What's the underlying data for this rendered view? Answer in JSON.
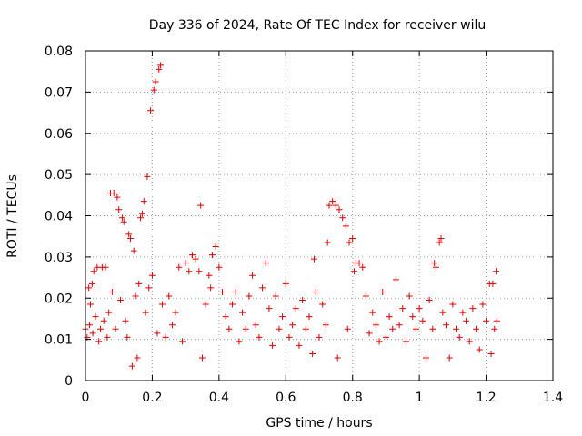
{
  "chart_data": {
    "type": "scatter",
    "title": "Day 336 of 2024, Rate Of TEC Index for receiver wilu",
    "xlabel": "GPS time / hours",
    "ylabel": "ROTI / TECUs",
    "xlim": [
      0,
      1.4
    ],
    "ylim": [
      0,
      0.08
    ],
    "xticks": [
      0,
      0.2,
      0.4,
      0.6,
      0.8,
      1.0,
      1.2,
      1.4
    ],
    "xtick_labels": [
      "0",
      "0.2",
      "0.4",
      "0.6",
      "0.8",
      "1",
      "1.2",
      "1.4"
    ],
    "yticks": [
      0,
      0.01,
      0.02,
      0.03,
      0.04,
      0.05,
      0.06,
      0.07,
      0.08
    ],
    "ytick_labels": [
      "0",
      "0.01",
      "0.02",
      "0.03",
      "0.04",
      "0.05",
      "0.06",
      "0.07",
      "0.08"
    ],
    "grid": true,
    "marker": "+",
    "marker_color": "#e00000",
    "series": [
      {
        "name": "ROTI",
        "points": [
          [
            0.0,
            0.0125
          ],
          [
            0.005,
            0.0105
          ],
          [
            0.01,
            0.0225
          ],
          [
            0.012,
            0.0135
          ],
          [
            0.015,
            0.0185
          ],
          [
            0.02,
            0.0235
          ],
          [
            0.022,
            0.0115
          ],
          [
            0.025,
            0.0265
          ],
          [
            0.03,
            0.0155
          ],
          [
            0.035,
            0.0275
          ],
          [
            0.04,
            0.0095
          ],
          [
            0.045,
            0.0125
          ],
          [
            0.05,
            0.0275
          ],
          [
            0.055,
            0.0145
          ],
          [
            0.06,
            0.0275
          ],
          [
            0.065,
            0.0105
          ],
          [
            0.07,
            0.0165
          ],
          [
            0.075,
            0.0455
          ],
          [
            0.08,
            0.0215
          ],
          [
            0.085,
            0.0455
          ],
          [
            0.09,
            0.0125
          ],
          [
            0.095,
            0.0445
          ],
          [
            0.1,
            0.0415
          ],
          [
            0.105,
            0.0195
          ],
          [
            0.11,
            0.0395
          ],
          [
            0.115,
            0.0385
          ],
          [
            0.12,
            0.0145
          ],
          [
            0.125,
            0.0105
          ],
          [
            0.13,
            0.0355
          ],
          [
            0.135,
            0.0345
          ],
          [
            0.14,
            0.0035
          ],
          [
            0.145,
            0.0315
          ],
          [
            0.15,
            0.0205
          ],
          [
            0.155,
            0.0055
          ],
          [
            0.16,
            0.0235
          ],
          [
            0.165,
            0.0395
          ],
          [
            0.17,
            0.0405
          ],
          [
            0.175,
            0.0435
          ],
          [
            0.18,
            0.0165
          ],
          [
            0.185,
            0.0495
          ],
          [
            0.19,
            0.0225
          ],
          [
            0.195,
            0.0655
          ],
          [
            0.2,
            0.0255
          ],
          [
            0.205,
            0.0705
          ],
          [
            0.21,
            0.0725
          ],
          [
            0.215,
            0.0115
          ],
          [
            0.22,
            0.0755
          ],
          [
            0.225,
            0.0765
          ],
          [
            0.23,
            0.0185
          ],
          [
            0.24,
            0.0105
          ],
          [
            0.25,
            0.0205
          ],
          [
            0.26,
            0.0135
          ],
          [
            0.27,
            0.0165
          ],
          [
            0.28,
            0.0275
          ],
          [
            0.29,
            0.0095
          ],
          [
            0.3,
            0.0285
          ],
          [
            0.31,
            0.0265
          ],
          [
            0.32,
            0.0305
          ],
          [
            0.33,
            0.0295
          ],
          [
            0.34,
            0.0265
          ],
          [
            0.345,
            0.0425
          ],
          [
            0.35,
            0.0055
          ],
          [
            0.36,
            0.0185
          ],
          [
            0.37,
            0.0255
          ],
          [
            0.375,
            0.0225
          ],
          [
            0.38,
            0.0305
          ],
          [
            0.39,
            0.0325
          ],
          [
            0.4,
            0.0275
          ],
          [
            0.41,
            0.0215
          ],
          [
            0.42,
            0.0155
          ],
          [
            0.43,
            0.0125
          ],
          [
            0.44,
            0.0185
          ],
          [
            0.45,
            0.0215
          ],
          [
            0.46,
            0.0095
          ],
          [
            0.47,
            0.0165
          ],
          [
            0.48,
            0.0125
          ],
          [
            0.49,
            0.0205
          ],
          [
            0.5,
            0.0255
          ],
          [
            0.51,
            0.0135
          ],
          [
            0.52,
            0.0105
          ],
          [
            0.53,
            0.0225
          ],
          [
            0.54,
            0.0285
          ],
          [
            0.55,
            0.0175
          ],
          [
            0.56,
            0.0085
          ],
          [
            0.57,
            0.0205
          ],
          [
            0.58,
            0.0125
          ],
          [
            0.59,
            0.0155
          ],
          [
            0.6,
            0.0235
          ],
          [
            0.61,
            0.0105
          ],
          [
            0.62,
            0.0135
          ],
          [
            0.63,
            0.0175
          ],
          [
            0.64,
            0.0085
          ],
          [
            0.65,
            0.0195
          ],
          [
            0.66,
            0.0125
          ],
          [
            0.67,
            0.0155
          ],
          [
            0.68,
            0.0065
          ],
          [
            0.685,
            0.0295
          ],
          [
            0.69,
            0.0215
          ],
          [
            0.7,
            0.0105
          ],
          [
            0.71,
            0.0185
          ],
          [
            0.72,
            0.0135
          ],
          [
            0.725,
            0.0335
          ],
          [
            0.73,
            0.0425
          ],
          [
            0.74,
            0.0435
          ],
          [
            0.75,
            0.0425
          ],
          [
            0.755,
            0.0055
          ],
          [
            0.76,
            0.0415
          ],
          [
            0.77,
            0.0395
          ],
          [
            0.78,
            0.0375
          ],
          [
            0.785,
            0.0125
          ],
          [
            0.79,
            0.0335
          ],
          [
            0.8,
            0.0345
          ],
          [
            0.805,
            0.0265
          ],
          [
            0.81,
            0.0285
          ],
          [
            0.82,
            0.0285
          ],
          [
            0.83,
            0.0275
          ],
          [
            0.84,
            0.0205
          ],
          [
            0.85,
            0.0115
          ],
          [
            0.86,
            0.0165
          ],
          [
            0.87,
            0.0135
          ],
          [
            0.88,
            0.0095
          ],
          [
            0.89,
            0.0215
          ],
          [
            0.9,
            0.0105
          ],
          [
            0.91,
            0.0155
          ],
          [
            0.92,
            0.0125
          ],
          [
            0.93,
            0.0245
          ],
          [
            0.94,
            0.0135
          ],
          [
            0.95,
            0.0175
          ],
          [
            0.96,
            0.0095
          ],
          [
            0.97,
            0.0205
          ],
          [
            0.98,
            0.0155
          ],
          [
            0.99,
            0.0125
          ],
          [
            1.0,
            0.0175
          ],
          [
            1.01,
            0.0145
          ],
          [
            1.02,
            0.0055
          ],
          [
            1.03,
            0.0195
          ],
          [
            1.04,
            0.0125
          ],
          [
            1.045,
            0.0285
          ],
          [
            1.05,
            0.0275
          ],
          [
            1.06,
            0.0335
          ],
          [
            1.065,
            0.0345
          ],
          [
            1.07,
            0.0165
          ],
          [
            1.08,
            0.0135
          ],
          [
            1.09,
            0.0055
          ],
          [
            1.1,
            0.0185
          ],
          [
            1.11,
            0.0125
          ],
          [
            1.12,
            0.0105
          ],
          [
            1.13,
            0.0165
          ],
          [
            1.14,
            0.0145
          ],
          [
            1.15,
            0.0095
          ],
          [
            1.16,
            0.0175
          ],
          [
            1.17,
            0.0125
          ],
          [
            1.18,
            0.0075
          ],
          [
            1.19,
            0.0185
          ],
          [
            1.2,
            0.0145
          ],
          [
            1.21,
            0.0235
          ],
          [
            1.215,
            0.0065
          ],
          [
            1.22,
            0.0235
          ],
          [
            1.225,
            0.0125
          ],
          [
            1.23,
            0.0265
          ],
          [
            1.232,
            0.0145
          ]
        ]
      }
    ]
  }
}
